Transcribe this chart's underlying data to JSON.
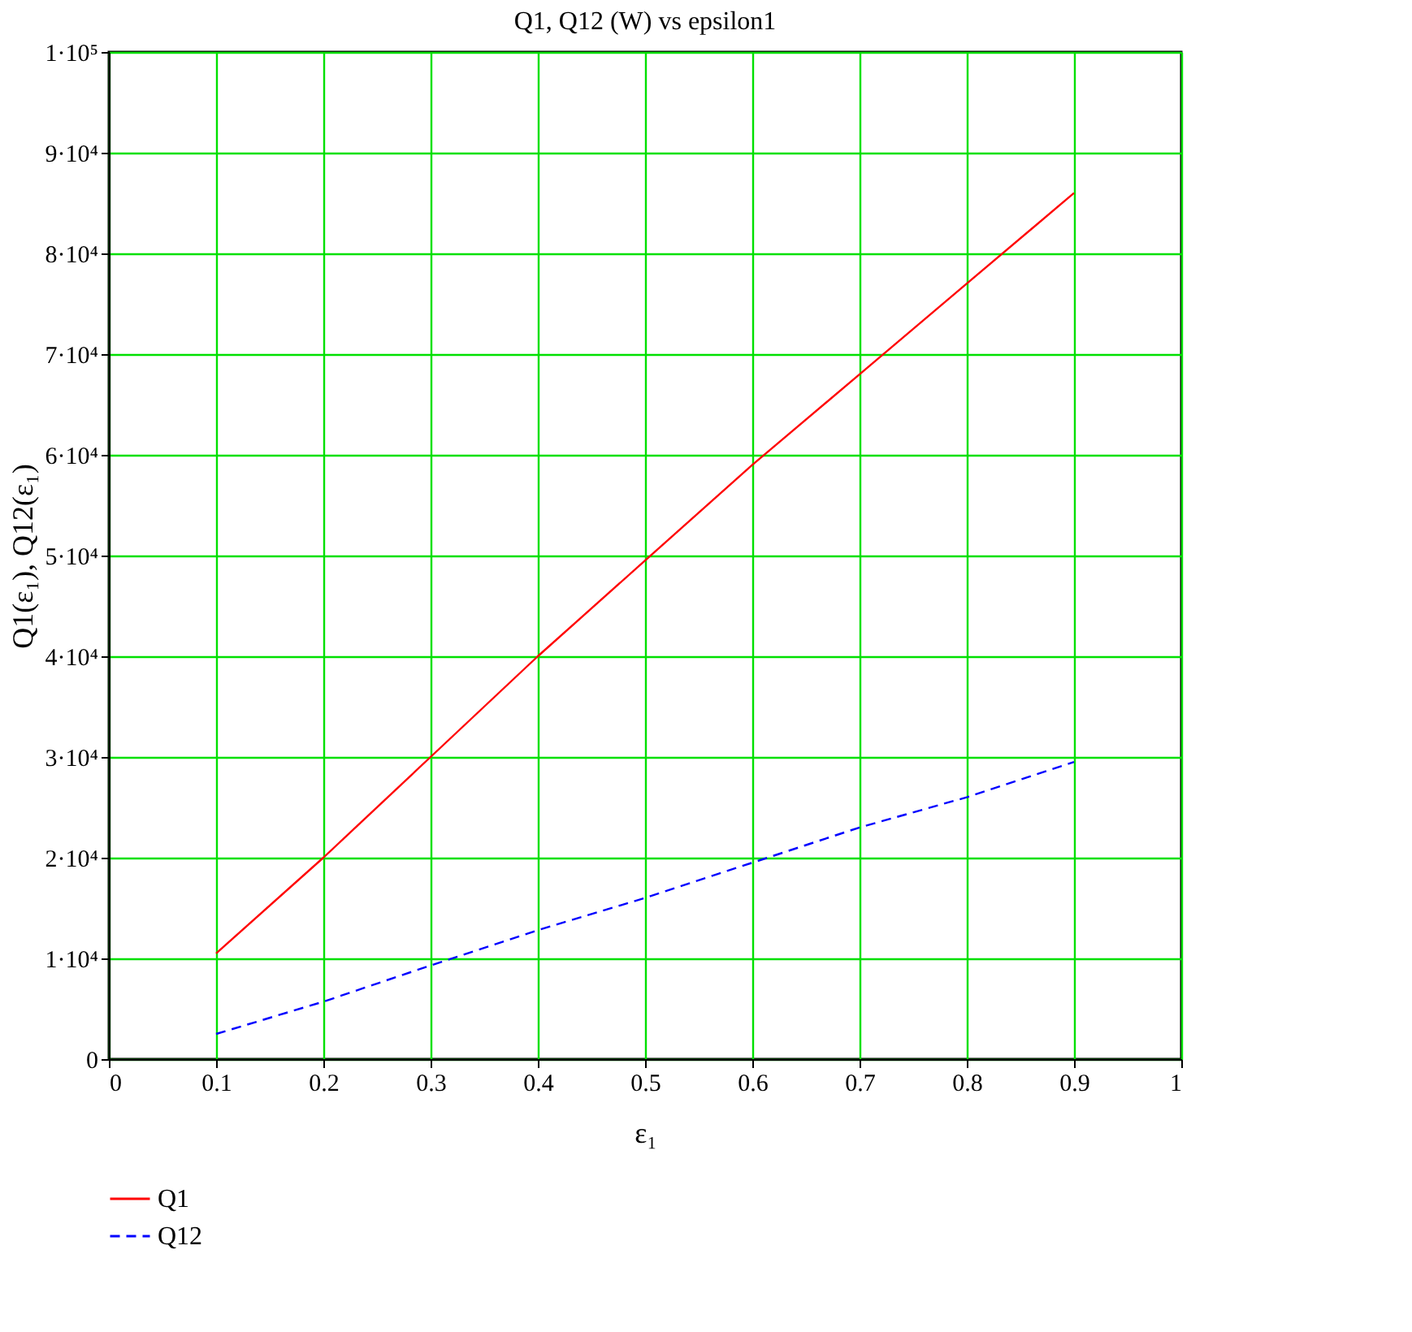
{
  "chart_data": {
    "type": "line",
    "title": "Q1, Q12 (W) vs epsilon1",
    "xlabel": "ε₁",
    "ylabel": "Q1(ε₁), Q12(ε₁)",
    "x": [
      0.1,
      0.2,
      0.3,
      0.4,
      0.5,
      0.6,
      0.7,
      0.8,
      0.9
    ],
    "series": [
      {
        "name": "Q1",
        "color": "#ff0000",
        "line_style": "solid",
        "values": [
          10500,
          20000,
          30000,
          40000,
          49500,
          59000,
          68000,
          77000,
          86000
        ]
      },
      {
        "name": "Q12",
        "color": "#0000ff",
        "line_style": "dashed",
        "values": [
          2500,
          5700,
          9300,
          12800,
          16000,
          19500,
          23000,
          26000,
          29500
        ]
      }
    ],
    "xlim": [
      0,
      1
    ],
    "xticks": [
      0,
      0.1,
      0.2,
      0.3,
      0.4,
      0.5,
      0.6,
      0.7,
      0.8,
      0.9,
      1
    ],
    "ylim": [
      0,
      100000
    ],
    "yticks": [
      0,
      {
        "value": 10000,
        "label": "1·10⁴"
      },
      {
        "value": 20000,
        "label": "2·10⁴"
      },
      {
        "value": 30000,
        "label": "3·10⁴"
      },
      {
        "value": 40000,
        "label": "4·10⁴"
      },
      {
        "value": 50000,
        "label": "5·10⁴"
      },
      {
        "value": 60000,
        "label": "6·10⁴"
      },
      {
        "value": 70000,
        "label": "7·10⁴"
      },
      {
        "value": 80000,
        "label": "8·10⁴"
      },
      {
        "value": 90000,
        "label": "9·10⁴"
      },
      {
        "value": 100000,
        "label": "1·10⁵"
      }
    ],
    "grid": true,
    "legend": "bottom left",
    "marker": "none"
  }
}
